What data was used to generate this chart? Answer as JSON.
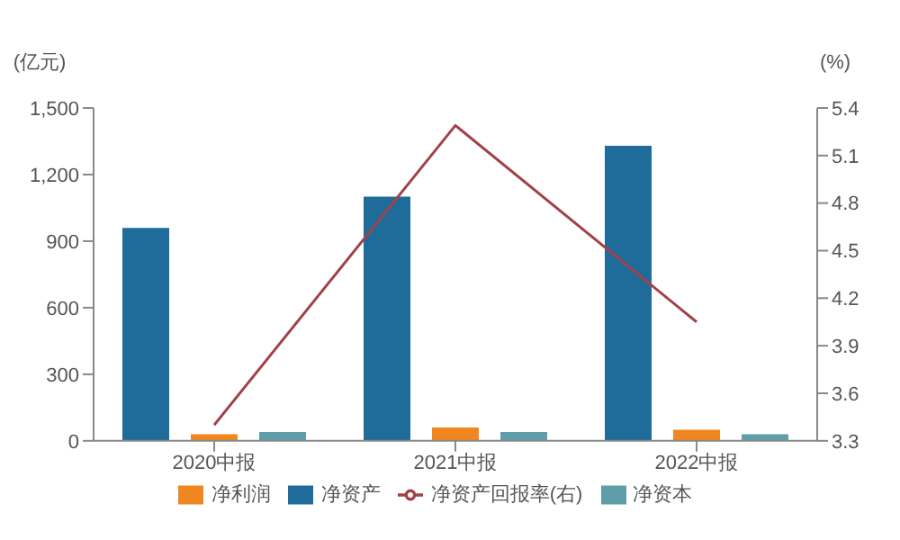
{
  "chart_data": {
    "type": "bar",
    "ylabel": "(亿元)",
    "y2label": "(%)",
    "categories": [
      "2020中报",
      "2021中报",
      "2022中报"
    ],
    "series": [
      {
        "name": "净资产",
        "color": "#1f6b9a",
        "values": [
          960,
          1100,
          1330
        ]
      },
      {
        "name": "净利润",
        "color": "#f0861f",
        "values": [
          30,
          60,
          50
        ]
      },
      {
        "name": "净资本",
        "color": "#5e9ea8",
        "values": [
          40,
          40,
          30
        ]
      },
      {
        "name": "净资产回报率(右)",
        "type": "line",
        "axis": "y2",
        "color": "#a0424a",
        "values": [
          3.4,
          5.29,
          4.05
        ]
      }
    ],
    "ylim": [
      0,
      1500
    ],
    "yticks": [
      0,
      300,
      600,
      900,
      {
        "value": 1200,
        "label": "1,200"
      },
      {
        "value": 1500,
        "label": "1,500"
      }
    ],
    "y2lim": [
      3.3,
      5.4
    ],
    "y2ticks": [
      3.3,
      3.6,
      3.9,
      4.2,
      4.5,
      4.8,
      5.1,
      5.4
    ],
    "grid": false,
    "legend": "bottom",
    "marker": "none"
  }
}
